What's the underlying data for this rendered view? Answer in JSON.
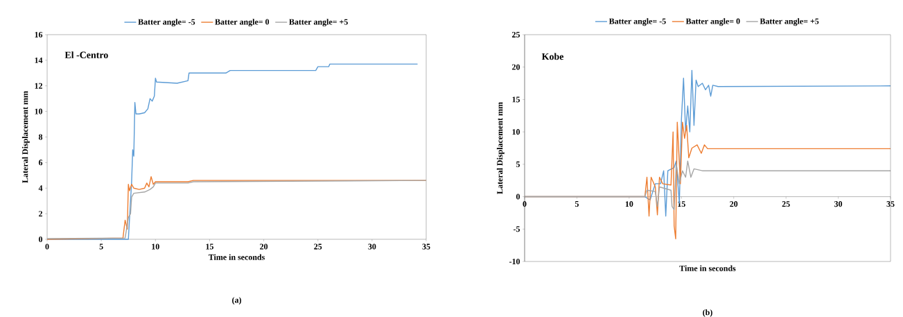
{
  "chart_data": [
    {
      "type": "line",
      "title": "El -Centro",
      "annotations": [
        "(a)"
      ],
      "xlabel": "Time in seconds",
      "ylabel": "Lateral Displacement mm",
      "xlim": [
        0,
        35
      ],
      "ylim": [
        0,
        16
      ],
      "xticks": [
        0,
        5,
        10,
        15,
        20,
        25,
        30,
        35
      ],
      "yticks": [
        0,
        2,
        4,
        6,
        8,
        10,
        12,
        14,
        16
      ],
      "grid": false,
      "legend": "top",
      "marker": "none",
      "line_style": "solid",
      "series": [
        {
          "name": "Batter angle= -5",
          "color": "#5b9bd5",
          "x": [
            0,
            7.2,
            7.5,
            7.6,
            7.8,
            7.9,
            8.0,
            8.1,
            8.2,
            8.5,
            9.0,
            9.3,
            9.5,
            9.7,
            9.9,
            10.0,
            10.1,
            12.0,
            13.0,
            13.1,
            15,
            16.5,
            16.9,
            20,
            24.8,
            25,
            26,
            26.1,
            34.2
          ],
          "values": [
            0,
            0,
            0,
            1.5,
            4.5,
            7,
            6.5,
            10.7,
            9.8,
            9.8,
            9.9,
            10.2,
            11,
            10.8,
            11.2,
            12.6,
            12.3,
            12.2,
            12.4,
            13.0,
            13.0,
            13.0,
            13.2,
            13.2,
            13.2,
            13.5,
            13.5,
            13.7,
            13.7
          ]
        },
        {
          "name": "Batter angle= 0",
          "color": "#ed7d31",
          "x": [
            0,
            7.0,
            7.2,
            7.4,
            7.5,
            7.6,
            7.8,
            8.0,
            8.5,
            9.0,
            9.2,
            9.4,
            9.6,
            9.8,
            10.0,
            13,
            13.5,
            35
          ],
          "values": [
            0,
            0.1,
            1.5,
            0.8,
            4.3,
            3.8,
            4.3,
            4.0,
            3.9,
            4.0,
            4.4,
            4.1,
            4.9,
            4.3,
            4.5,
            4.5,
            4.6,
            4.6
          ]
        },
        {
          "name": "Batter angle= +5",
          "color": "#a5a5a5",
          "x": [
            0,
            7.2,
            7.5,
            7.7,
            7.8,
            8.0,
            9.0,
            9.5,
            9.8,
            10,
            13,
            13.5,
            35
          ],
          "values": [
            0.05,
            0.1,
            1.7,
            2,
            3.3,
            3.6,
            3.7,
            3.9,
            4.1,
            4.4,
            4.4,
            4.5,
            4.6
          ]
        }
      ]
    },
    {
      "type": "line",
      "title": "Kobe",
      "annotations": [
        "(b)"
      ],
      "xlabel": "Time in seconds",
      "ylabel": "Lateral Displacement mm",
      "xlim": [
        0,
        35
      ],
      "ylim": [
        -10,
        25
      ],
      "xticks": [
        0,
        5,
        10,
        15,
        20,
        25,
        30,
        35
      ],
      "yticks": [
        -10,
        -5,
        0,
        5,
        10,
        15,
        20,
        25
      ],
      "grid": false,
      "legend": "top",
      "marker": "none",
      "line_style": "solid",
      "series": [
        {
          "name": "Batter angle= -5",
          "color": "#5b9bd5",
          "x": [
            0,
            11.5,
            12,
            12.5,
            13,
            13.3,
            13.5,
            13.7,
            14.3,
            14.5,
            14.8,
            15.0,
            15.2,
            15.4,
            15.6,
            15.8,
            16.0,
            16.2,
            16.4,
            16.6,
            17,
            17.3,
            17.6,
            17.8,
            18,
            18.5,
            35
          ],
          "values": [
            0,
            0,
            -0.5,
            2,
            2,
            4,
            -3,
            4,
            4.5,
            5.5,
            -1,
            12,
            18.3,
            10,
            14,
            10,
            19.5,
            11,
            18,
            17,
            17.5,
            16.5,
            17.2,
            15.5,
            17.2,
            17,
            17.1
          ]
        },
        {
          "name": "Batter angle= 0",
          "color": "#ed7d31",
          "x": [
            0,
            11.5,
            11.7,
            11.9,
            12.1,
            12.5,
            12.7,
            12.9,
            13.2,
            14,
            14.2,
            14.3,
            14.45,
            14.6,
            14.9,
            15.1,
            15.3,
            15.5,
            15.7,
            16,
            16.5,
            16.9,
            17.2,
            17.5,
            35
          ],
          "values": [
            0,
            0,
            3,
            -3,
            3,
            1.5,
            -2.8,
            3,
            2,
            1.8,
            10,
            -4.5,
            -6.5,
            11.5,
            2,
            11.5,
            9,
            11,
            6,
            7.5,
            8,
            6.7,
            8,
            7.4,
            7.4
          ]
        },
        {
          "name": "Batter angle= +5",
          "color": "#a5a5a5",
          "x": [
            0,
            11.5,
            11.7,
            12.5,
            12.7,
            12.9,
            14,
            14.1,
            14.3,
            14.5,
            14.8,
            15.1,
            15.4,
            15.6,
            15.9,
            16.2,
            17,
            35
          ],
          "values": [
            0,
            0,
            1,
            0.8,
            -1.5,
            1.5,
            1,
            -1.5,
            -2,
            5,
            2,
            4,
            3,
            5.5,
            3,
            4.3,
            4.0,
            4.0
          ]
        }
      ]
    }
  ]
}
